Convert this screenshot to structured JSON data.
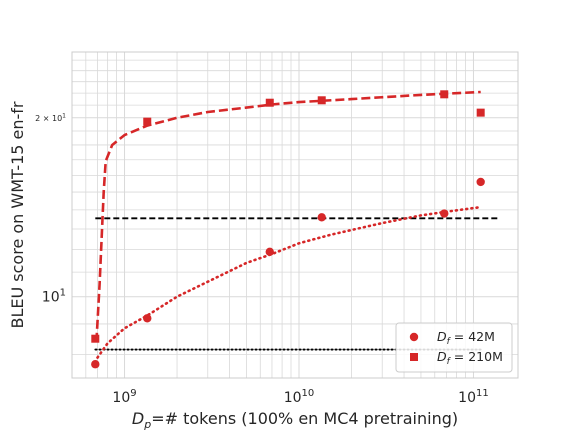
{
  "chart_data": {
    "type": "scatter",
    "xlabel_parts": [
      "D",
      "p",
      "=# tokens (100% en MC4 pretraining)"
    ],
    "ylabel": "BLEU score on WMT-15 en-fr",
    "x_scale": "log",
    "y_scale": "log",
    "xlim": [
      500000000,
      180000000000
    ],
    "ylim": [
      7.3,
      25.8
    ],
    "x_ticks": [
      {
        "value": 1000000000,
        "base": "10",
        "exp": "9"
      },
      {
        "value": 10000000000,
        "base": "10",
        "exp": "10"
      },
      {
        "value": 100000000000,
        "base": "10",
        "exp": "11"
      }
    ],
    "y_ticks": [
      {
        "value": 10,
        "base": "10",
        "exp": "1",
        "style": "major"
      },
      {
        "value": 20,
        "prefix": "2 × 10",
        "exp": "1",
        "style": "minor"
      }
    ],
    "grid": true,
    "legend_position": "lower-right",
    "color": "#d62728",
    "series": [
      {
        "name_parts": [
          "D",
          "f",
          " = 42M"
        ],
        "marker": "circle",
        "points": [
          [
            680000000,
            7.7
          ],
          [
            1350000000,
            9.2
          ],
          [
            6800000000,
            11.9
          ],
          [
            13500000000,
            13.6
          ],
          [
            68000000000,
            13.8
          ],
          [
            110000000000,
            15.6
          ]
        ],
        "fit": {
          "style": "dotted",
          "points": [
            [
              700000000,
              7.9
            ],
            [
              800000000,
              8.35
            ],
            [
              1000000000,
              8.85
            ],
            [
              1350000000,
              9.3
            ],
            [
              2000000000,
              10.0
            ],
            [
              3000000000,
              10.6
            ],
            [
              5000000000,
              11.4
            ],
            [
              7000000000,
              11.8
            ],
            [
              10000000000,
              12.3
            ],
            [
              15000000000,
              12.7
            ],
            [
              20000000000,
              12.95
            ],
            [
              30000000000,
              13.3
            ],
            [
              50000000000,
              13.7
            ],
            [
              70000000000,
              13.9
            ],
            [
              110000000000,
              14.15
            ]
          ]
        }
      },
      {
        "name_parts": [
          "D",
          "f",
          " = 210M"
        ],
        "marker": "square",
        "points": [
          [
            680000000,
            8.5
          ],
          [
            1350000000,
            19.7
          ],
          [
            6800000000,
            21.2
          ],
          [
            13500000000,
            21.4
          ],
          [
            68000000000,
            21.9
          ],
          [
            110000000000,
            20.4
          ]
        ],
        "fit": {
          "style": "dashed",
          "points": [
            [
              690000000,
              8.4
            ],
            [
              720000000,
              10.5
            ],
            [
              760000000,
              15.0
            ],
            [
              780000000,
              16.9
            ],
            [
              850000000,
              18.0
            ],
            [
              1000000000,
              18.7
            ],
            [
              1350000000,
              19.4
            ],
            [
              2000000000,
              20.0
            ],
            [
              3000000000,
              20.45
            ],
            [
              5000000000,
              20.8
            ],
            [
              7000000000,
              21.05
            ],
            [
              10000000000,
              21.25
            ],
            [
              20000000000,
              21.5
            ],
            [
              50000000000,
              21.85
            ],
            [
              110000000000,
              22.1
            ]
          ]
        }
      }
    ],
    "reference_lines": [
      {
        "style": "dashed",
        "y": 13.55,
        "x_range": [
          680000000,
          140000000000
        ],
        "color": "#000000"
      },
      {
        "style": "dotted",
        "y": 8.15,
        "x_range": [
          680000000,
          110000000000
        ],
        "color": "#000000"
      }
    ]
  }
}
